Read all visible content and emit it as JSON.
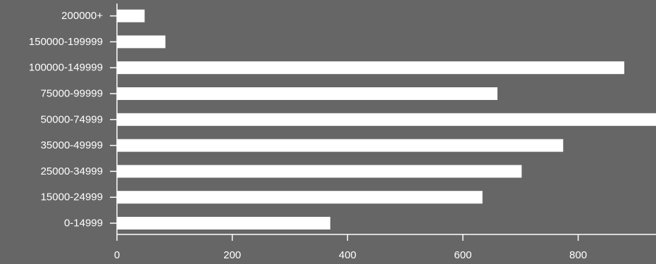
{
  "chart_data": {
    "type": "bar",
    "orientation": "horizontal",
    "categories": [
      "0-14999",
      "15000-24999",
      "25000-34999",
      "35000-49999",
      "50000-74999",
      "75000-99999",
      "100000-149999",
      "150000-199999",
      "200000+"
    ],
    "values": [
      370,
      634,
      702,
      774,
      935,
      660,
      880,
      84,
      48
    ],
    "x_ticks": [
      0,
      200,
      400,
      600,
      800
    ],
    "xlim": [
      0,
      935
    ],
    "grid": false,
    "title": "",
    "xlabel": "",
    "ylabel": "",
    "colors": {
      "background": "#666666",
      "bar": "#ffffff",
      "axis": "#ffffff",
      "text": "#ffffff"
    }
  }
}
